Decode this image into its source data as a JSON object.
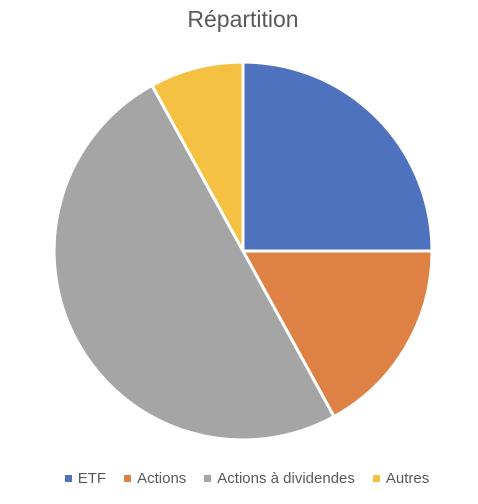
{
  "chart_data": {
    "type": "pie",
    "title": "Répartition",
    "categories": [
      "ETF",
      "Actions",
      "Actions à dividendes",
      "Autres"
    ],
    "values": [
      25,
      17,
      50,
      8
    ],
    "colors": [
      "#4F72BE",
      "#DD8244",
      "#A5A5A5",
      "#F4C142"
    ],
    "start_angle": "12 o'clock",
    "direction": "clockwise",
    "legend": "bottom"
  }
}
